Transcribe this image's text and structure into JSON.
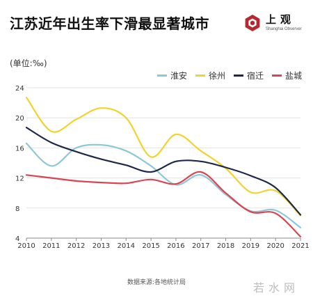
{
  "title": "江苏近年出生率下滑最显著城市",
  "logo": {
    "cn": "上观",
    "en": "Shanghai Observer",
    "color": "#b52a2e"
  },
  "chart_data": {
    "type": "line",
    "unit_label": "(单位:‰)",
    "x": [
      2010,
      2011,
      2012,
      2013,
      2014,
      2015,
      2016,
      2017,
      2018,
      2019,
      2020,
      2021
    ],
    "xlim": [
      2010,
      2021
    ],
    "ylim": [
      4,
      24
    ],
    "yticks": [
      4,
      8,
      12,
      16,
      20,
      24
    ],
    "grid": "horizontal",
    "legend_position": "top-right",
    "series": [
      {
        "name": "淮安",
        "color": "#8cc8d6",
        "values": [
          16.6,
          13.6,
          16.0,
          16.4,
          15.6,
          13.6,
          11.1,
          12.4,
          9.8,
          7.6,
          7.7,
          5.4
        ]
      },
      {
        "name": "徐州",
        "color": "#f2d22e",
        "values": [
          22.7,
          18.2,
          19.8,
          21.3,
          20.0,
          14.8,
          17.8,
          15.6,
          13.3,
          10.1,
          10.3,
          7.0
        ]
      },
      {
        "name": "宿迁",
        "color": "#1d2747",
        "values": [
          18.7,
          16.7,
          15.5,
          14.5,
          13.7,
          12.8,
          14.2,
          14.2,
          13.4,
          12.3,
          10.7,
          7.1
        ]
      },
      {
        "name": "盐城",
        "color": "#d94452",
        "values": [
          12.4,
          12.0,
          11.6,
          11.4,
          11.3,
          11.8,
          11.2,
          12.8,
          10.0,
          7.5,
          7.3,
          4.2
        ]
      }
    ]
  },
  "source": "数据来源:各地统计局",
  "watermark": "若水网"
}
